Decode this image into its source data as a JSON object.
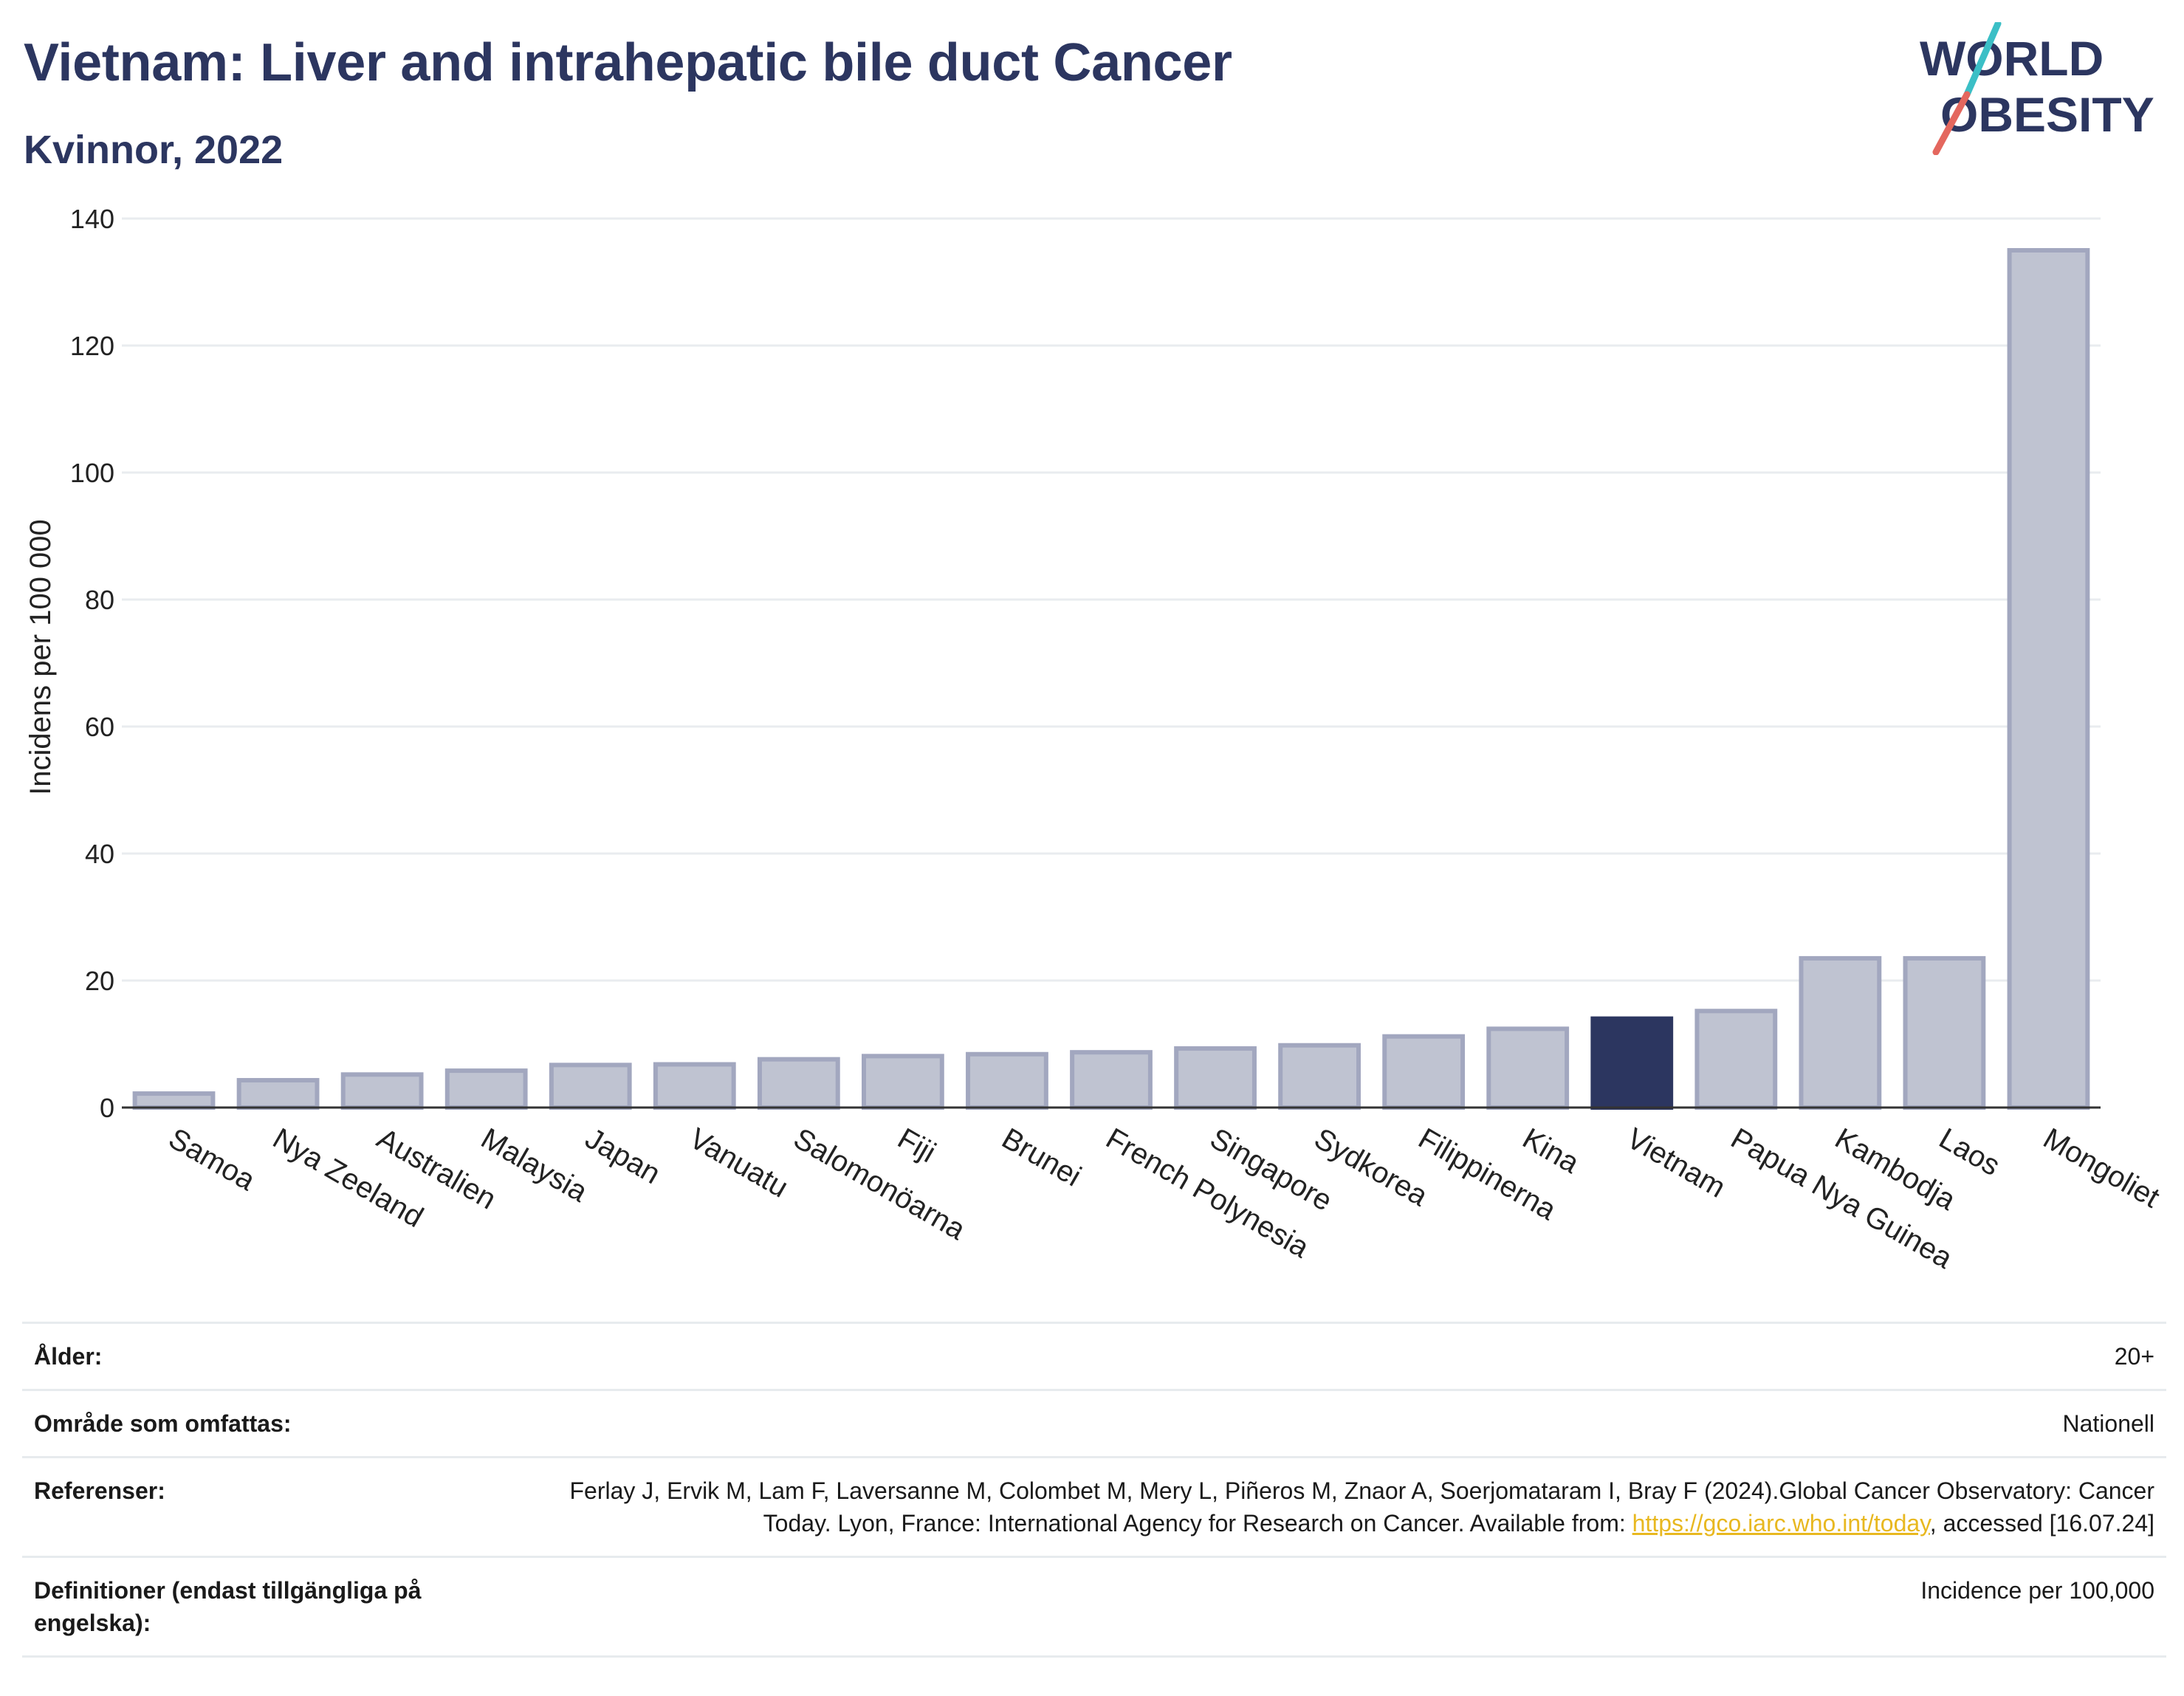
{
  "header": {
    "title": "Vietnam: Liver and intrahepatic bile duct Cancer",
    "subtitle": "Kvinnor, 2022"
  },
  "logo": {
    "line1": "WORLD",
    "line2": "OBESITY",
    "colors": {
      "text": "#2c3660",
      "slash_teal": "#3bbfc6",
      "slash_coral": "#e4675e"
    }
  },
  "chart_data": {
    "type": "bar",
    "title": "Vietnam: Liver and intrahepatic bile duct Cancer",
    "subtitle": "Kvinnor, 2022",
    "xlabel": "",
    "ylabel": "Incidens per 100 000",
    "ylim": [
      0,
      140
    ],
    "yticks": [
      0,
      20,
      40,
      60,
      80,
      100,
      120,
      140
    ],
    "grid": true,
    "categories": [
      "Samoa",
      "Nya Zeeland",
      "Australien",
      "Malaysia",
      "Japan",
      "Vanuatu",
      "Salomonöarna",
      "Fiji",
      "Brunei",
      "French Polynesia",
      "Singapore",
      "Sydkorea",
      "Filippinerna",
      "Kina",
      "Vietnam",
      "Papua Nya Guinea",
      "Kambodja",
      "Laos",
      "Mongoliet"
    ],
    "values": [
      2.2,
      4.3,
      5.2,
      5.8,
      6.7,
      6.8,
      7.6,
      8.1,
      8.4,
      8.7,
      9.3,
      9.8,
      11.2,
      12.4,
      14.0,
      15.2,
      23.5,
      23.5,
      135.0
    ],
    "highlight": "Vietnam",
    "colors": {
      "bar": "#bfc3d1",
      "bar_border": "#a2a7bf",
      "highlight": "#2c3660",
      "grid": "#e9ecef",
      "axis": "#333333"
    }
  },
  "meta": {
    "age_label": "Ålder:",
    "age_value": "20+",
    "area_label": "Område som omfattas:",
    "area_value": "Nationell",
    "ref_label": "Referenser:",
    "ref_text_1": "Ferlay J, Ervik M, Lam F, Laversanne M, Colombet M, Mery L, Piñeros M, Znaor A, Soerjomataram I, Bray F (2024).Global Cancer Observatory: Cancer Today. Lyon, France: International Agency for Research on Cancer. Available from: ",
    "ref_link": "https://gco.iarc.who.int/today",
    "ref_text_2": ", accessed [16.07.24]",
    "def_label": "Definitioner (endast tillgängliga på engelska):",
    "def_value": "Incidence per 100,000"
  }
}
